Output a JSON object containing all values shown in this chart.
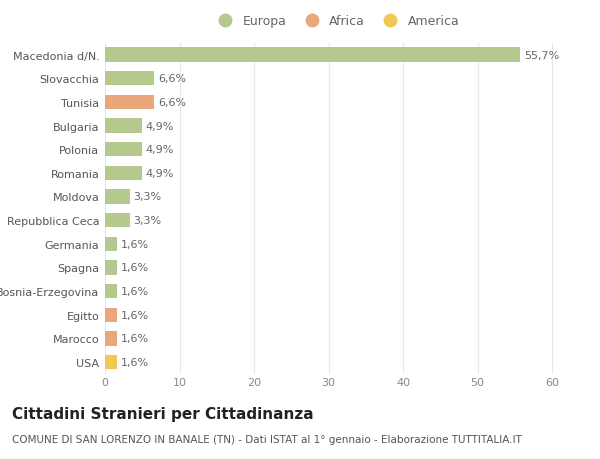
{
  "categories": [
    "Macedonia d/N.",
    "Slovacchia",
    "Tunisia",
    "Bulgaria",
    "Polonia",
    "Romania",
    "Moldova",
    "Repubblica Ceca",
    "Germania",
    "Spagna",
    "Bosnia-Erzegovina",
    "Egitto",
    "Marocco",
    "USA"
  ],
  "values": [
    55.7,
    6.6,
    6.6,
    4.9,
    4.9,
    4.9,
    3.3,
    3.3,
    1.6,
    1.6,
    1.6,
    1.6,
    1.6,
    1.6
  ],
  "labels": [
    "55,7%",
    "6,6%",
    "6,6%",
    "4,9%",
    "4,9%",
    "4,9%",
    "3,3%",
    "3,3%",
    "1,6%",
    "1,6%",
    "1,6%",
    "1,6%",
    "1,6%",
    "1,6%"
  ],
  "colors": [
    "#b5c98e",
    "#b5c98e",
    "#e8a87c",
    "#b5c98e",
    "#b5c98e",
    "#b5c98e",
    "#b5c98e",
    "#b5c98e",
    "#b5c98e",
    "#b5c98e",
    "#b5c98e",
    "#e8a87c",
    "#e8a87c",
    "#f0c955"
  ],
  "legend_labels": [
    "Europa",
    "Africa",
    "America"
  ],
  "legend_colors": [
    "#b5c98e",
    "#e8a87c",
    "#f0c955"
  ],
  "title": "Cittadini Stranieri per Cittadinanza",
  "subtitle": "COMUNE DI SAN LORENZO IN BANALE (TN) - Dati ISTAT al 1° gennaio - Elaborazione TUTTITALIA.IT",
  "xlim": [
    0,
    62
  ],
  "xticks": [
    0,
    10,
    20,
    30,
    40,
    50,
    60
  ],
  "background_color": "#ffffff",
  "grid_color": "#e8e8e8",
  "bar_height": 0.6,
  "label_fontsize": 8,
  "tick_fontsize": 8,
  "title_fontsize": 11,
  "subtitle_fontsize": 7.5
}
